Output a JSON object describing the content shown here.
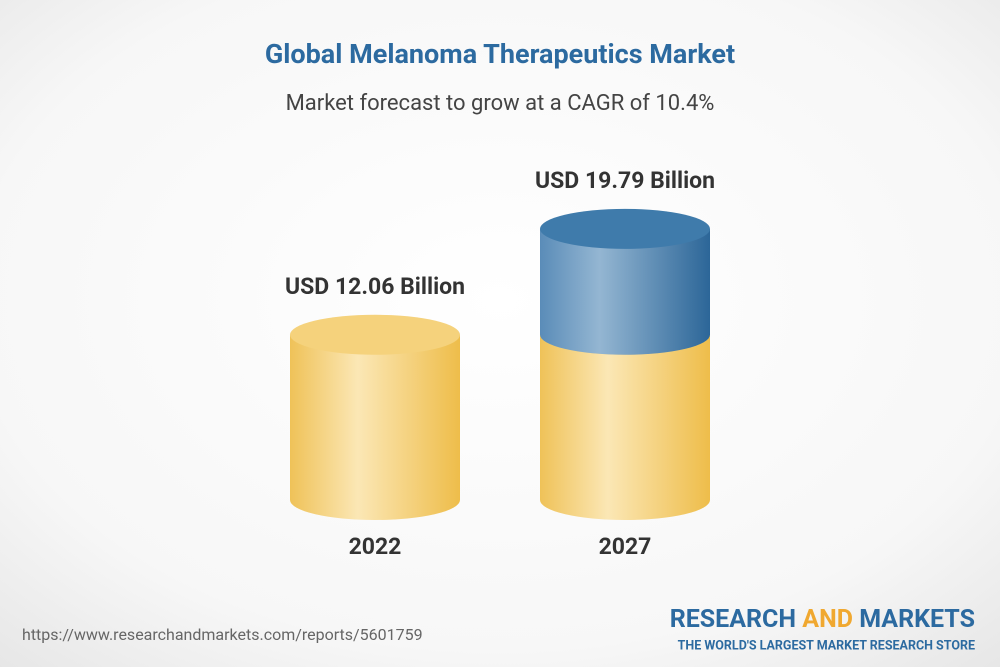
{
  "chart_data": {
    "type": "cylinder-bar",
    "title": "Global Melanoma Therapeutics Market",
    "subtitle": "Market forecast to grow at a CAGR of 10.4%",
    "categories": [
      "2022",
      "2027"
    ],
    "values": [
      12.06,
      19.79
    ],
    "value_labels": [
      "USD 12.06 Billion",
      "USD 19.79 Billion"
    ],
    "colors": {
      "base": "#f2c55a",
      "growth": "#3f7bab"
    }
  },
  "footer": {
    "url": "https://www.researchandmarkets.com/reports/5601759",
    "logo": {
      "word1": "RESEARCH",
      "word2": "AND",
      "word3": "MARKETS",
      "tagline": "THE WORLD'S LARGEST MARKET RESEARCH STORE"
    }
  }
}
